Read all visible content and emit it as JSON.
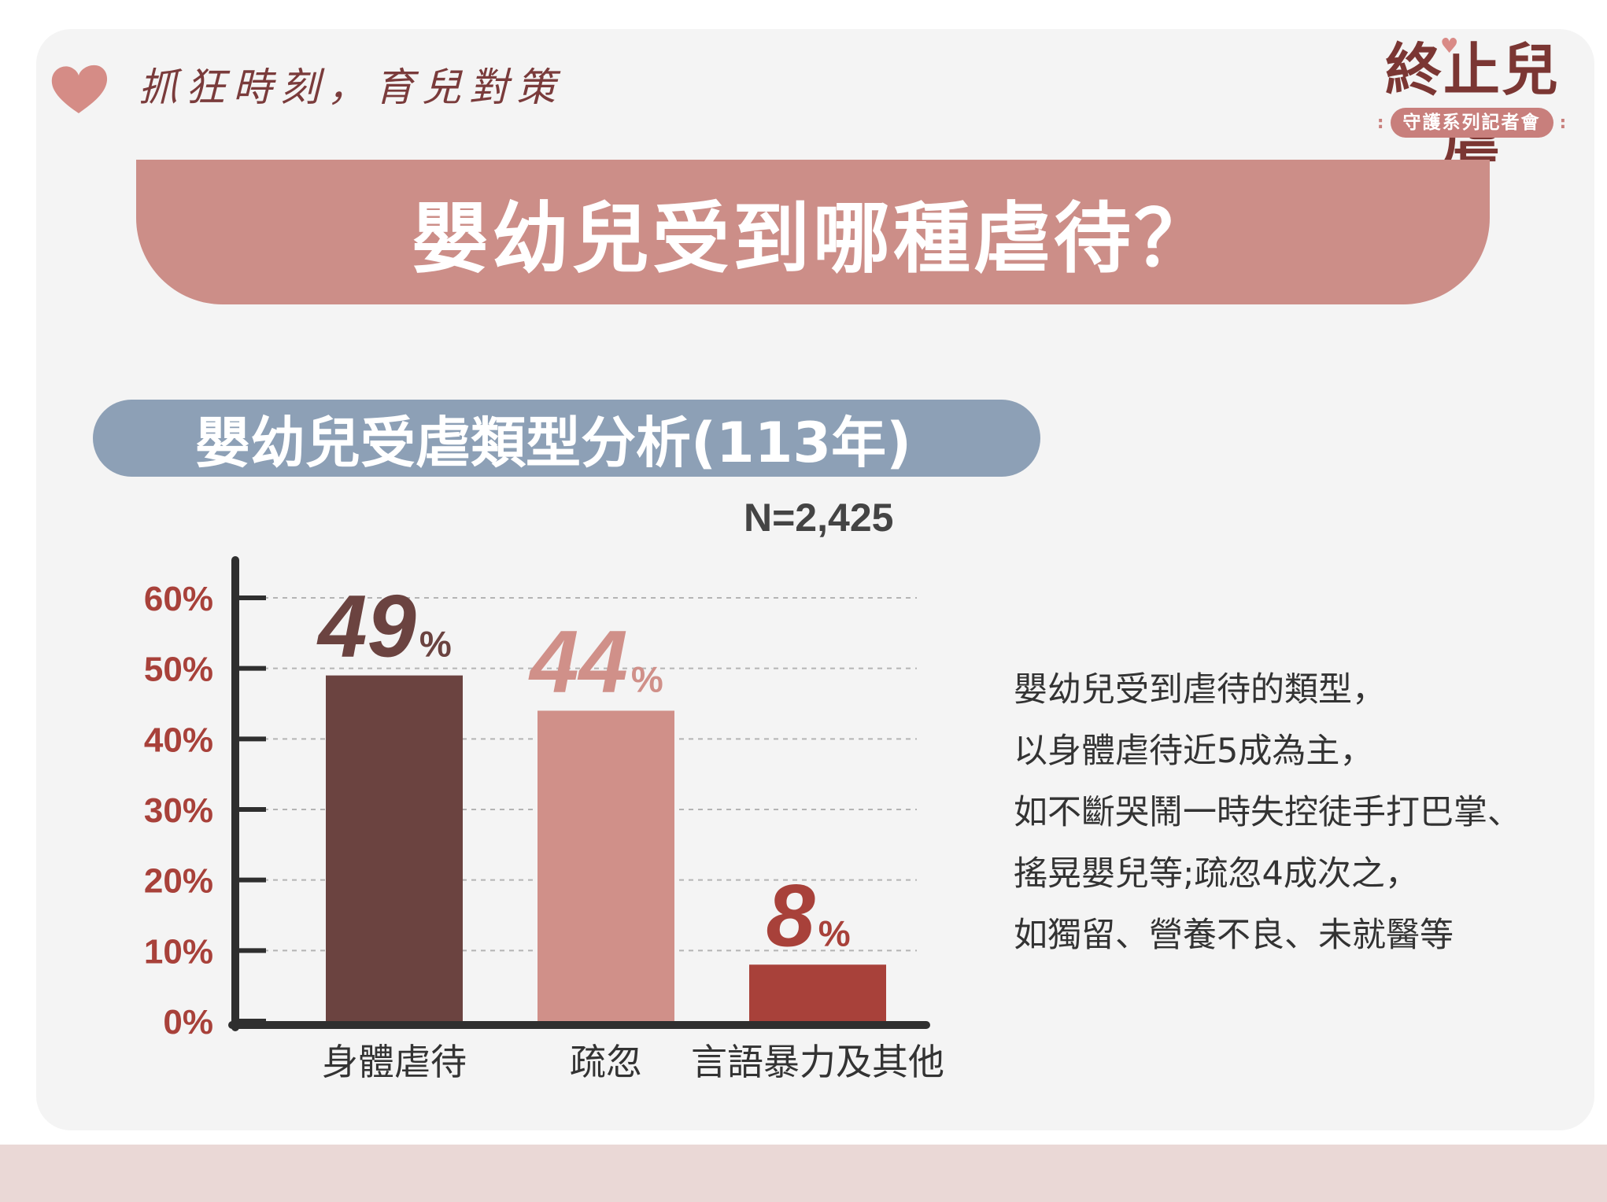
{
  "header": {
    "tagline": "抓狂時刻，育兒對策",
    "brand_title": "終止兒虐",
    "brand_subtitle": "守護系列記者會"
  },
  "main_title": "嬰幼兒受到哪種虐待？",
  "chart_title": "嬰幼兒受虐類型分析(113年)",
  "sample_size": "N=2,425",
  "chart_data": {
    "type": "bar",
    "title": "嬰幼兒受虐類型分析(113年)",
    "categories": [
      "身體虐待",
      "疏忽",
      "言語暴力及其他"
    ],
    "values": [
      49,
      44,
      8
    ],
    "data_labels": [
      "49",
      "44",
      "8"
    ],
    "label_unit": "%",
    "y_ticks": [
      "0%",
      "10%",
      "20%",
      "30%",
      "40%",
      "50%",
      "60%"
    ],
    "ylim": [
      0,
      60
    ],
    "grid": true,
    "colors": [
      "#6b4340",
      "#d09089",
      "#a8413a"
    ],
    "axis_label_color": "#a8413a"
  },
  "note_lines": [
    "嬰幼兒受到虐待的類型，",
    "以身體虐待近5成為主，",
    "如不斷哭鬧一時失控徒手打巴掌、",
    "搖晃嬰兒等;疏忽4成次之，",
    "如獨留、營養不良、未就醫等"
  ],
  "colors": {
    "card_bg": "#f4f4f4",
    "banner": "#cc8e88",
    "pill": "#8da0b6",
    "brand": "#7b3633",
    "bottom_band": "#ead8d6"
  },
  "icons": [
    "heart-icon"
  ]
}
